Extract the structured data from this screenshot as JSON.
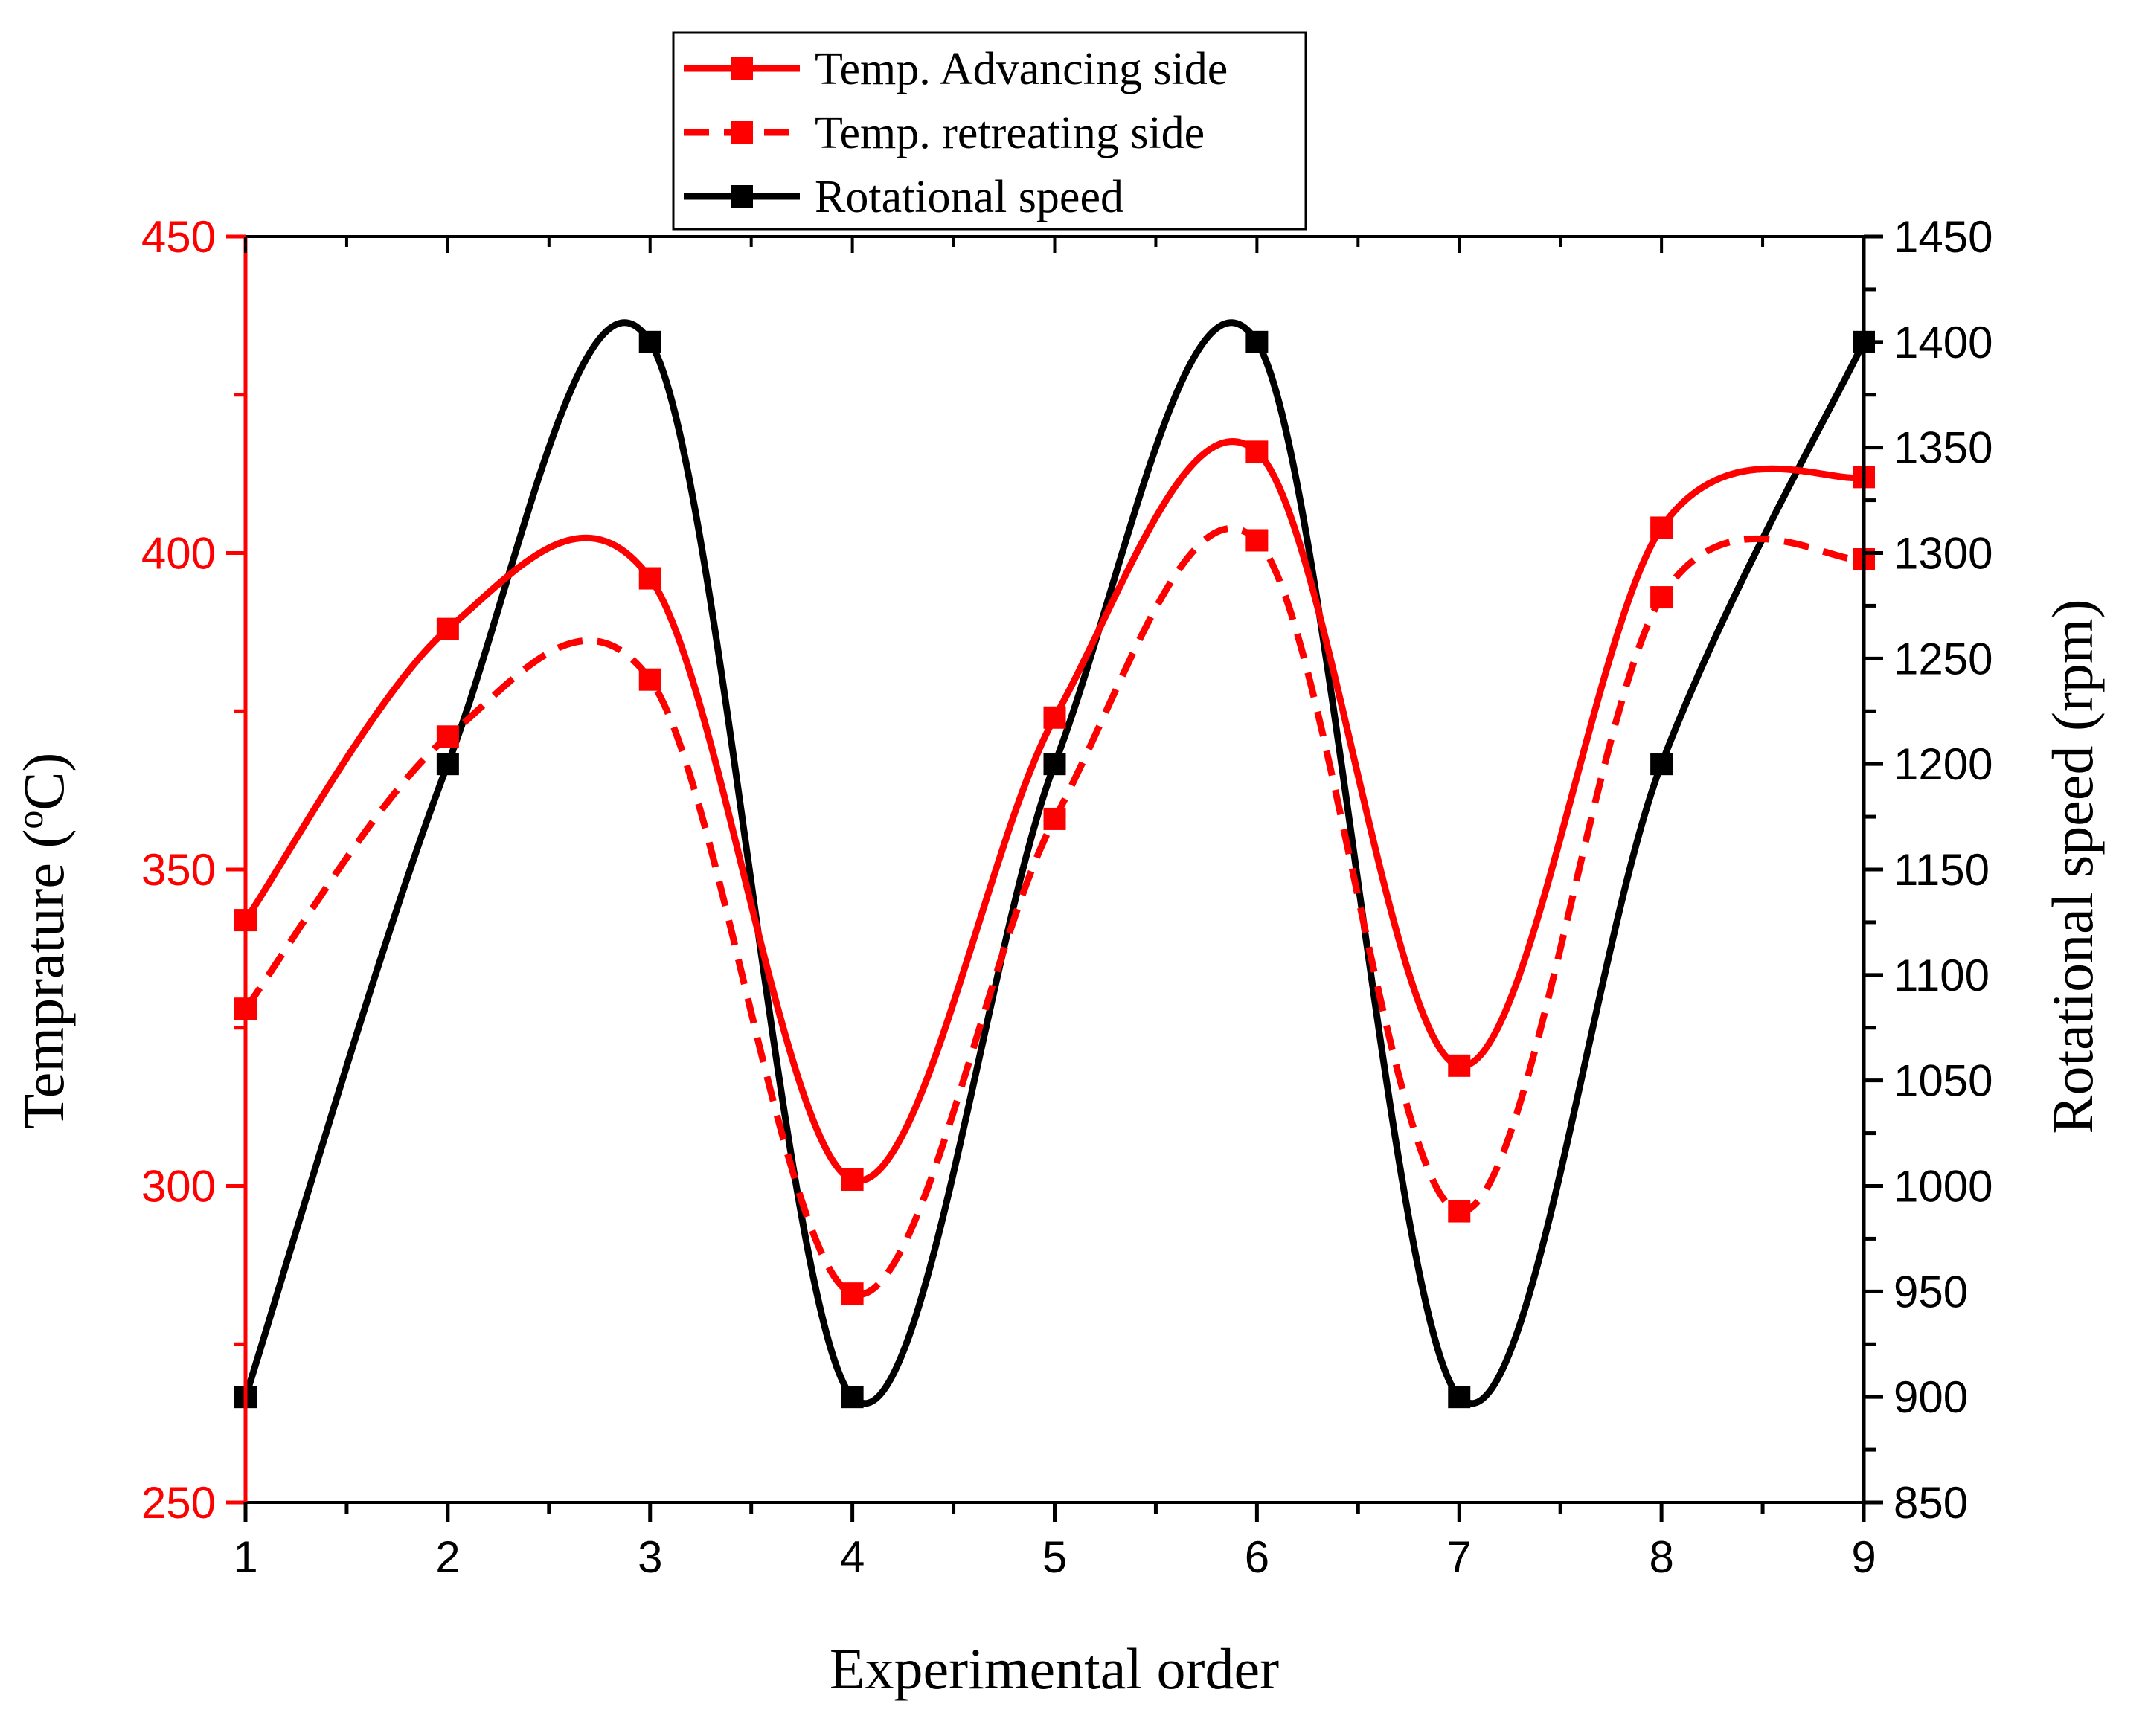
{
  "chart_data": {
    "type": "line",
    "title": "",
    "xlabel": "Experimental order",
    "ylabel_left": "Temprature (",
    "ylabel_left_sup": "o",
    "ylabel_left_end": "C)",
    "ylabel_right": "Rotational speed (rpm)",
    "x": [
      1,
      2,
      3,
      4,
      5,
      6,
      7,
      8,
      9
    ],
    "x_tick_labels": [
      "1",
      "2",
      "3",
      "4",
      "5",
      "6",
      "7",
      "8",
      "9"
    ],
    "xlim": [
      1,
      9
    ],
    "ylim_left": [
      250,
      450
    ],
    "ylim_right": [
      850,
      1450
    ],
    "left_ticks": [
      250,
      300,
      350,
      400,
      450
    ],
    "right_ticks": [
      850,
      900,
      950,
      1000,
      1050,
      1100,
      1150,
      1200,
      1250,
      1300,
      1350,
      1400,
      1450
    ],
    "series": [
      {
        "name": "Temp.  Advancing side",
        "axis": "left",
        "color": "#ff0000",
        "dash": "solid",
        "values": [
          342,
          388,
          396,
          301,
          374,
          416,
          319,
          404,
          412
        ]
      },
      {
        "name": "Temp. retreating  side",
        "axis": "left",
        "color": "#ff0000",
        "dash": "dashed",
        "values": [
          328,
          371,
          380,
          283,
          358,
          402,
          296,
          393,
          399
        ]
      },
      {
        "name": "Rotational speed",
        "axis": "right",
        "color": "#000000",
        "dash": "solid",
        "values": [
          900,
          1200,
          1400,
          900,
          1200,
          1400,
          900,
          1200,
          1400
        ]
      }
    ],
    "left_axis_color": "#ff0000",
    "right_axis_color": "#000000",
    "legend_position": "top-center",
    "grid": false
  }
}
